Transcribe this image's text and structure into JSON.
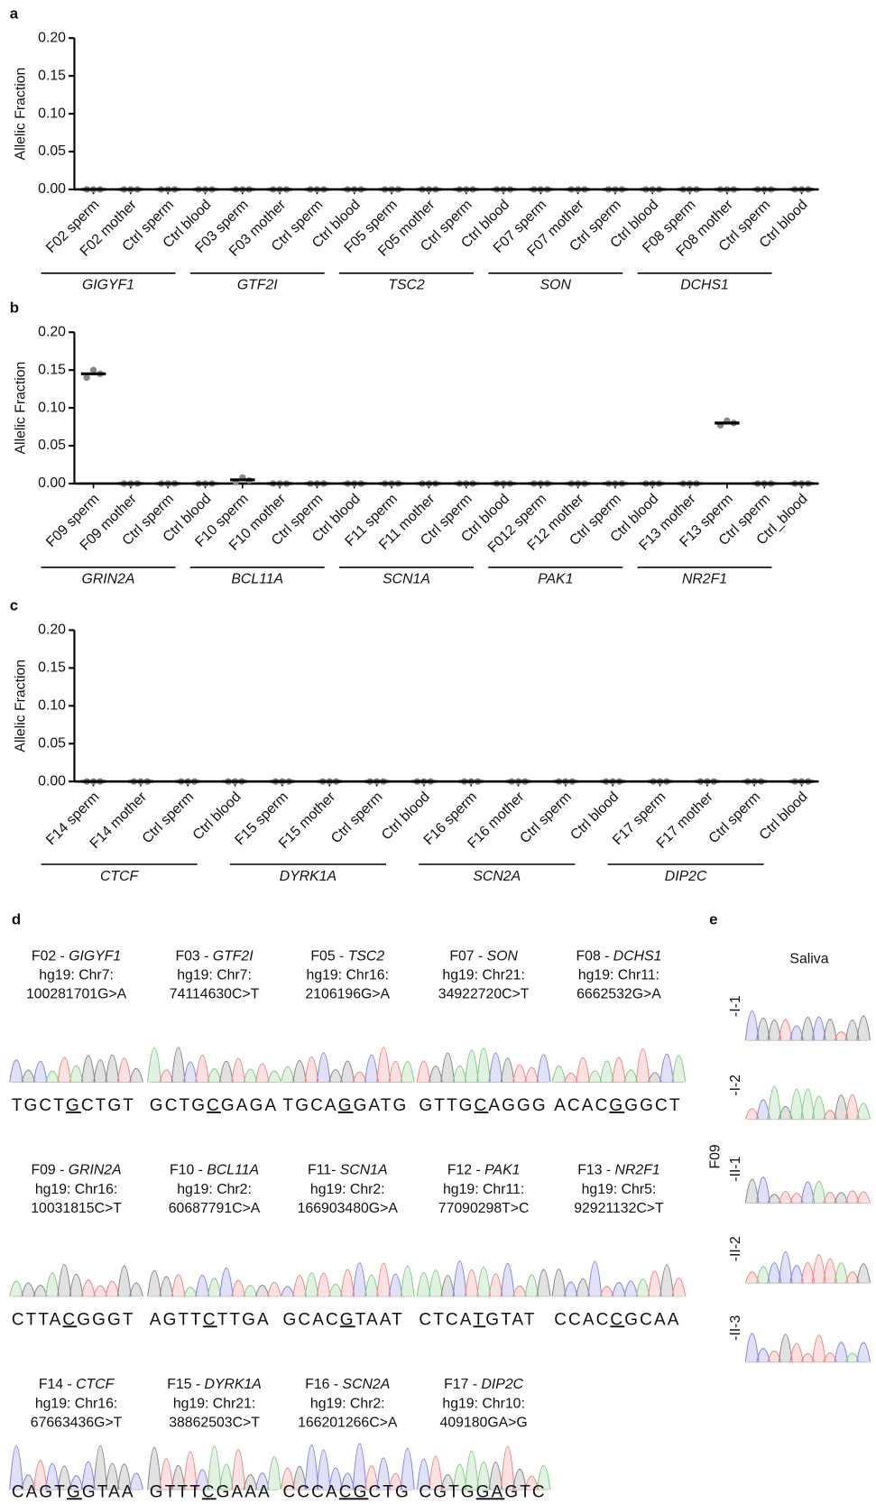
{
  "chart_data": [
    {
      "type": "dotplot",
      "panel": "a",
      "ylabel": "Allelic Fraction",
      "categories": [
        "F02 sperm",
        "F02 mother",
        "Ctrl sperm",
        "Ctrl blood",
        "F03 sperm",
        "F03 mother",
        "Ctrl sperm",
        "Ctrl blood",
        "F05 sperm",
        "F05 mother",
        "Ctrl sperm",
        "Ctrl blood",
        "F07 sperm",
        "F07 mother",
        "Ctrl sperm",
        "Ctrl blood",
        "F08 sperm",
        "F08 mother",
        "Ctrl sperm",
        "Ctrl blood"
      ],
      "groups": [
        "GIGYF1",
        "GTF2I",
        "TSC2",
        "SON",
        "DCHS1"
      ],
      "values": [
        0,
        0,
        0,
        0,
        0,
        0,
        0,
        0,
        0,
        0,
        0,
        0,
        0,
        0,
        0,
        0,
        0,
        0,
        0,
        0
      ],
      "replicates": [
        [
          0,
          0,
          0
        ],
        [
          0,
          0,
          0
        ],
        [
          0,
          0,
          0
        ],
        [
          0,
          0,
          0
        ],
        [
          0,
          0,
          0
        ],
        [
          0,
          0,
          0
        ],
        [
          0,
          0,
          0
        ],
        [
          0,
          0,
          0
        ],
        [
          0,
          0,
          0
        ],
        [
          0,
          0,
          0
        ],
        [
          0,
          0,
          0
        ],
        [
          0,
          0,
          0
        ],
        [
          0,
          0,
          0
        ],
        [
          0,
          0,
          0
        ],
        [
          0,
          0,
          0
        ],
        [
          0,
          0,
          0
        ],
        [
          0,
          0,
          0
        ],
        [
          0,
          0,
          0
        ],
        [
          0,
          0,
          0
        ],
        [
          0,
          0,
          0
        ]
      ],
      "color": "#8a8a8a",
      "ylim": [
        0,
        0.2
      ],
      "yticks": [
        {
          "value": 0,
          "label": "0.00"
        },
        {
          "value": 0.05,
          "label": "0.05"
        },
        {
          "value": 0.1,
          "label": "0.10"
        },
        {
          "value": 0.15,
          "label": "0.15"
        },
        {
          "value": 0.2,
          "label": "0.20"
        }
      ]
    },
    {
      "type": "dotplot",
      "panel": "b",
      "ylabel": "Allelic Fraction",
      "categories": [
        "F09 sperm",
        "F09 mother",
        "Ctrl sperm",
        "Ctrl blood",
        "F10 sperm",
        "F10 mother",
        "Ctrl sperm",
        "Ctrl blood",
        "F11  sperm",
        "F11 mother",
        "Ctrl sperm",
        "Ctrl blood",
        "F012 sperm",
        "F12 mother",
        "Ctrl sperm",
        "Ctrl blood",
        "F13 mother",
        "F13 sperm",
        "Ctrl sperm",
        "Ctrl_blood"
      ],
      "groups": [
        "GRIN2A",
        "BCL11A",
        "SCN1A",
        "PAK1",
        "NR2F1"
      ],
      "values": [
        0.145,
        0,
        0,
        0,
        0.005,
        0,
        0,
        0,
        0,
        0,
        0,
        0,
        0,
        0,
        0,
        0,
        0,
        0.08,
        0,
        0
      ],
      "replicates": [
        [
          0.14,
          0.15,
          0.145
        ],
        [
          0,
          0,
          0
        ],
        [
          0,
          0,
          0
        ],
        [
          0,
          0,
          0
        ],
        [
          0.002,
          0.008,
          0.004
        ],
        [
          0,
          0,
          0
        ],
        [
          0,
          0,
          0
        ],
        [
          0,
          0,
          0
        ],
        [
          0,
          0,
          0
        ],
        [
          0,
          0,
          0
        ],
        [
          0,
          0,
          0
        ],
        [
          0,
          0,
          0
        ],
        [
          0,
          0,
          0
        ],
        [
          0,
          0,
          0
        ],
        [
          0,
          0,
          0
        ],
        [
          0,
          0,
          0
        ],
        [
          0,
          0,
          0
        ],
        [
          0.077,
          0.083,
          0.08
        ],
        [
          0,
          0,
          0
        ],
        [
          0,
          0,
          0
        ]
      ],
      "color": "#8a8a8a",
      "ylim": [
        0,
        0.2
      ],
      "yticks": [
        {
          "value": 0,
          "label": "0.00"
        },
        {
          "value": 0.05,
          "label": "0.05"
        },
        {
          "value": 0.1,
          "label": "0.10"
        },
        {
          "value": 0.15,
          "label": "0.15"
        },
        {
          "value": 0.2,
          "label": "0.20"
        }
      ]
    },
    {
      "type": "dotplot",
      "panel": "c",
      "ylabel": "Allelic Fraction",
      "categories": [
        "F14 sperm",
        "F14 mother",
        "Ctrl sperm",
        "Ctrl blood",
        "F15 sperm",
        "F15 mother",
        "Ctrl sperm",
        "Ctrl blood",
        "F16 sperm",
        "F16 mother",
        "Ctrl sperm",
        "Ctrl blood",
        "F17 sperm",
        "F17 mother",
        "Ctrl sperm",
        "Ctrl blood"
      ],
      "groups": [
        "CTCF",
        "DYRK1A",
        "SCN2A",
        "DIP2C"
      ],
      "values": [
        0,
        0,
        0,
        0,
        0,
        0,
        0,
        0,
        0,
        0,
        0,
        0,
        0,
        0,
        0,
        0
      ],
      "replicates": [
        [
          0,
          0,
          0
        ],
        [
          0,
          0,
          0
        ],
        [
          0,
          0,
          0
        ],
        [
          0,
          0,
          0
        ],
        [
          0,
          0,
          0
        ],
        [
          0,
          0,
          0
        ],
        [
          0,
          0,
          0
        ],
        [
          0,
          0,
          0
        ],
        [
          0,
          0,
          0
        ],
        [
          0,
          0,
          0
        ],
        [
          0,
          0,
          0
        ],
        [
          0,
          0,
          0
        ],
        [
          0,
          0,
          0
        ],
        [
          0,
          0,
          0
        ],
        [
          0,
          0,
          0
        ],
        [
          0,
          0,
          0
        ]
      ],
      "color": "#8a8a8a",
      "ylim": [
        0,
        0.2
      ],
      "yticks": [
        {
          "value": 0,
          "label": "0.00"
        },
        {
          "value": 0.05,
          "label": "0.05"
        },
        {
          "value": 0.1,
          "label": "0.10"
        },
        {
          "value": 0.15,
          "label": "0.15"
        },
        {
          "value": 0.2,
          "label": "0.20"
        }
      ]
    }
  ],
  "panel_d": {
    "label": "d",
    "samples": [
      {
        "prefix": "F02 - ",
        "gene": "GIGYF1",
        "locus": "hg19: Chr7:",
        "variant": "100281701G>A",
        "seq": [
          "TGCT",
          "G",
          "CTGT"
        ]
      },
      {
        "prefix": "F03 - ",
        "gene": "GTF2I",
        "locus": "hg19: Chr7:",
        "variant": "74114630C>T",
        "seq": [
          "GCTG",
          "C",
          "GAGA"
        ]
      },
      {
        "prefix": "F05 - ",
        "gene": "TSC2",
        "locus": "hg19: Chr16:",
        "variant": "2106196G>A",
        "seq": [
          "TGCA",
          "G",
          "GATG"
        ]
      },
      {
        "prefix": "F07 - ",
        "gene": "SON",
        "locus": "hg19: Chr21:",
        "variant": "34922720C>T",
        "seq": [
          "GTTG",
          "C",
          "AGGG"
        ]
      },
      {
        "prefix": "F08 - ",
        "gene": "DCHS1",
        "locus": "hg19: Chr11:",
        "variant": "6662532G>A",
        "seq": [
          "ACAC",
          "G",
          "GGCT"
        ]
      },
      {
        "prefix": "F09 - ",
        "gene": "GRIN2A",
        "locus": "hg19: Chr16:",
        "variant": "10031815C>T",
        "seq": [
          "CTTA",
          "C",
          "GGGT"
        ],
        "underline_color": "#c0392b"
      },
      {
        "prefix": "F10 - ",
        "gene": "BCL11A",
        "locus": "hg19: Chr2:",
        "variant": "60687791C>A",
        "seq": [
          "AGTT",
          "C",
          "TTGA"
        ],
        "underline_color": "#c0392b"
      },
      {
        "prefix": "F11- ",
        "gene": "SCN1A",
        "locus": "hg19: Chr2:",
        "variant": "166903480G>A",
        "seq": [
          "GCAC",
          "G",
          "TAAT"
        ]
      },
      {
        "prefix": "F12 - ",
        "gene": "PAK1",
        "locus": "hg19: Chr11:",
        "variant": "77090298T>C",
        "seq": [
          "CTCA",
          "T",
          "GTAT"
        ]
      },
      {
        "prefix": "F13 - ",
        "gene": "NR2F1",
        "locus": "hg19: Chr5:",
        "variant": "92921132C>T",
        "seq": [
          "CCAC",
          "C",
          "GCAA"
        ],
        "underline_color": "#c0392b"
      },
      {
        "prefix": "F14 - ",
        "gene": "CTCF",
        "locus": "hg19: Chr16:",
        "variant": "67663436G>T",
        "seq": [
          "CAGT",
          "G",
          "GTAA"
        ]
      },
      {
        "prefix": "F15 - ",
        "gene": "DYRK1A",
        "locus": "hg19: Chr21:",
        "variant": "38862503C>T",
        "seq": [
          "GTTT",
          "C",
          "GAAA"
        ],
        "underline_color": "#c0392b"
      },
      {
        "prefix": "F16 - ",
        "gene": "SCN2A",
        "locus": "hg19: Chr2:",
        "variant": "166201266C>A",
        "seq": [
          "CCCA",
          "CG",
          "CTG"
        ]
      },
      {
        "prefix": "F17 - ",
        "gene": "DIP2C",
        "locus": "hg19: Chr10:",
        "variant": "409180GA>G",
        "seq": [
          "CGTG",
          "GA",
          "GTC"
        ]
      }
    ]
  },
  "panel_e": {
    "label": "e",
    "title": "Saliva",
    "family": "F09",
    "rows": [
      "-I-1",
      "-I-2",
      "-II-1",
      "-II-2",
      "-II-3"
    ]
  }
}
